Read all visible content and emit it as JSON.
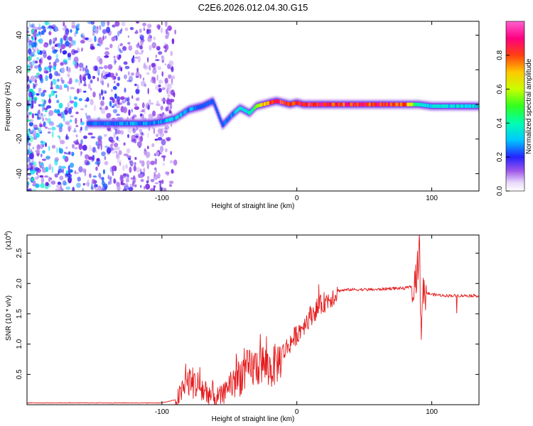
{
  "title": "C2E6.2026.012.04.30.G15",
  "colors": {
    "snr_line": "#e41a1c",
    "axis": "#000000",
    "ridge_core": "#e0301e",
    "scatter": "#7a1fe0"
  },
  "chart_data": [
    {
      "type": "heatmap",
      "title": "C2E6.2026.012.04.30.G15",
      "xlabel": "Height of straight line (km)",
      "ylabel": "Frequency (Hz)",
      "xlim": [
        -200,
        135
      ],
      "ylim": [
        -50,
        48
      ],
      "xticks": [
        -100,
        0,
        100
      ],
      "xtick_labels": [
        "-100",
        "0",
        "100"
      ],
      "yticks": [
        -40,
        -20,
        0,
        20,
        40
      ],
      "ytick_labels": [
        "-40",
        "-20",
        "0",
        "20",
        "40"
      ],
      "colorbar": {
        "label": "Normalized spectral amplitude",
        "range": [
          0,
          1
        ],
        "ticks": [
          0.0,
          0.2,
          0.4,
          0.6,
          0.8
        ],
        "tick_labels": [
          "0.0",
          "0.2",
          "0.4",
          "0.6",
          "0.8"
        ],
        "colormap": [
          "#ffffff",
          "#c9a8f5",
          "#7b1fe0",
          "#2020ff",
          "#00d8ff",
          "#00ff80",
          "#80ff00",
          "#ffff00",
          "#ffa000",
          "#ff2000",
          "#ff00a0",
          "#ff60d0"
        ]
      },
      "ridge": {
        "x": [
          -155,
          -140,
          -125,
          -110,
          -100,
          -90,
          -80,
          -70,
          -62,
          -55,
          -48,
          -42,
          -35,
          -30,
          -25,
          -20,
          -15,
          -10,
          -5,
          0,
          5,
          10,
          20,
          40,
          60,
          80,
          85,
          88,
          90,
          100,
          110,
          120,
          130,
          135
        ],
        "freq": [
          -11,
          -11,
          -11,
          -11,
          -10,
          -8,
          -3,
          -1,
          2,
          -12,
          -6,
          -2,
          -5,
          -1,
          0,
          1,
          2,
          1,
          0,
          1,
          0,
          0,
          0,
          0,
          0,
          0,
          0,
          0,
          0,
          -1,
          -1,
          -1,
          -1,
          -1
        ],
        "amplitude": [
          0.3,
          0.35,
          0.35,
          0.35,
          0.35,
          0.4,
          0.35,
          0.3,
          0.3,
          0.3,
          0.35,
          0.4,
          0.45,
          0.6,
          0.75,
          0.85,
          0.9,
          0.9,
          0.9,
          0.92,
          0.95,
          0.95,
          0.92,
          0.9,
          0.92,
          0.85,
          0.7,
          0.5,
          0.45,
          0.4,
          0.4,
          0.4,
          0.4,
          0.4
        ]
      }
    },
    {
      "type": "line",
      "xlabel": "Height of straight line (km)",
      "ylabel": "SNR (10 * v/v)",
      "y_multiplier_label": "(x10",
      "y_multiplier_exponent": "4",
      "y_multiplier_close": ")",
      "xlim": [
        -200,
        135
      ],
      "ylim": [
        0,
        2.8
      ],
      "xticks": [
        -100,
        0,
        100
      ],
      "xtick_labels": [
        "-100",
        "0",
        "100"
      ],
      "yticks": [
        0.5,
        1.0,
        1.5,
        2.0,
        2.5
      ],
      "ytick_labels": [
        "0.5",
        "1.0",
        "1.5",
        "2.0",
        "2.5"
      ],
      "series": [
        {
          "name": "SNR",
          "x": [
            -200,
            -100,
            -90,
            -85,
            -80,
            -75,
            -70,
            -65,
            -60,
            -55,
            -50,
            -45,
            -40,
            -35,
            -30,
            -25,
            -20,
            -15,
            -10,
            -5,
            0,
            5,
            10,
            15,
            20,
            25,
            30,
            40,
            50,
            60,
            70,
            80,
            85,
            88,
            90,
            91,
            92,
            93,
            95,
            100,
            110,
            120,
            130,
            135
          ],
          "y": [
            0.03,
            0.03,
            0.08,
            0.25,
            0.45,
            0.4,
            0.3,
            0.22,
            0.15,
            0.18,
            0.4,
            0.5,
            0.6,
            0.65,
            0.7,
            0.75,
            0.65,
            0.75,
            0.9,
            1.05,
            1.2,
            1.35,
            1.5,
            1.62,
            1.72,
            1.8,
            1.88,
            1.9,
            1.9,
            1.9,
            1.92,
            1.92,
            1.95,
            2.1,
            2.3,
            2.7,
            1.0,
            1.9,
            1.85,
            1.82,
            1.8,
            1.8,
            1.8,
            1.8
          ]
        }
      ]
    }
  ]
}
